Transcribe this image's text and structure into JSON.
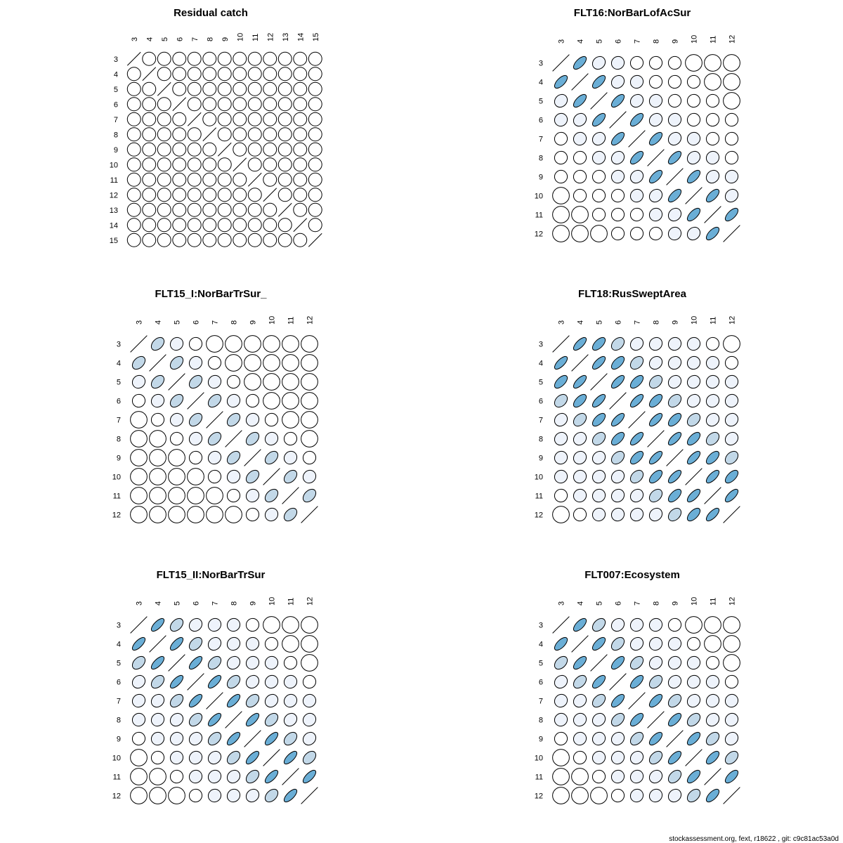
{
  "footer": "stockassessment.org, fext, r18622 , git: c9c81ac53a0d",
  "colors": {
    "c0": "#ffffff",
    "c1": "#eef3fb",
    "c2": "#c2d8e8",
    "c3": "#6aaed6",
    "outline": "#000000"
  },
  "chart_data": [
    {
      "type": "heatmap",
      "title": "Residual catch",
      "labels": [
        "3",
        "4",
        "5",
        "6",
        "7",
        "8",
        "9",
        "10",
        "11",
        "12",
        "13",
        "14",
        "15"
      ],
      "correlation_by_lag": [
        0,
        0,
        0,
        0,
        0,
        0,
        0,
        0,
        0,
        0,
        0,
        0
      ]
    },
    {
      "type": "heatmap",
      "title": "FLT16:NorBarLofAcSur",
      "labels": [
        "3",
        "4",
        "5",
        "6",
        "7",
        "8",
        "9",
        "10",
        "11",
        "12"
      ],
      "correlation_by_lag": [
        0.65,
        0.15,
        0.05,
        0.03,
        0.02,
        0.01,
        0,
        0,
        0
      ]
    },
    {
      "type": "heatmap",
      "title": "FLT15_I:NorBarTrSur_",
      "labels": [
        "3",
        "4",
        "5",
        "6",
        "7",
        "8",
        "9",
        "10",
        "11",
        "12"
      ],
      "correlation_by_lag": [
        0.4,
        0.08,
        0.02,
        0,
        0,
        0,
        0,
        0,
        0
      ]
    },
    {
      "type": "heatmap",
      "title": "FLT18:RusSweptArea",
      "labels": [
        "3",
        "4",
        "5",
        "6",
        "7",
        "8",
        "9",
        "10",
        "11",
        "12"
      ],
      "correlation_by_lag": [
        0.7,
        0.6,
        0.35,
        0.15,
        0.1,
        0.06,
        0.04,
        0.02,
        0
      ]
    },
    {
      "type": "heatmap",
      "title": "FLT15_II:NorBarTrSur",
      "labels": [
        "3",
        "4",
        "5",
        "6",
        "7",
        "8",
        "9",
        "10",
        "11",
        "12"
      ],
      "correlation_by_lag": [
        0.7,
        0.4,
        0.15,
        0.08,
        0.04,
        0.02,
        0,
        0,
        0
      ]
    },
    {
      "type": "heatmap",
      "title": "FLT007:Ecosystem",
      "labels": [
        "3",
        "4",
        "5",
        "6",
        "7",
        "8",
        "9",
        "10",
        "11",
        "12"
      ],
      "correlation_by_lag": [
        0.65,
        0.4,
        0.15,
        0.08,
        0.05,
        0.02,
        0,
        0,
        0
      ]
    }
  ]
}
